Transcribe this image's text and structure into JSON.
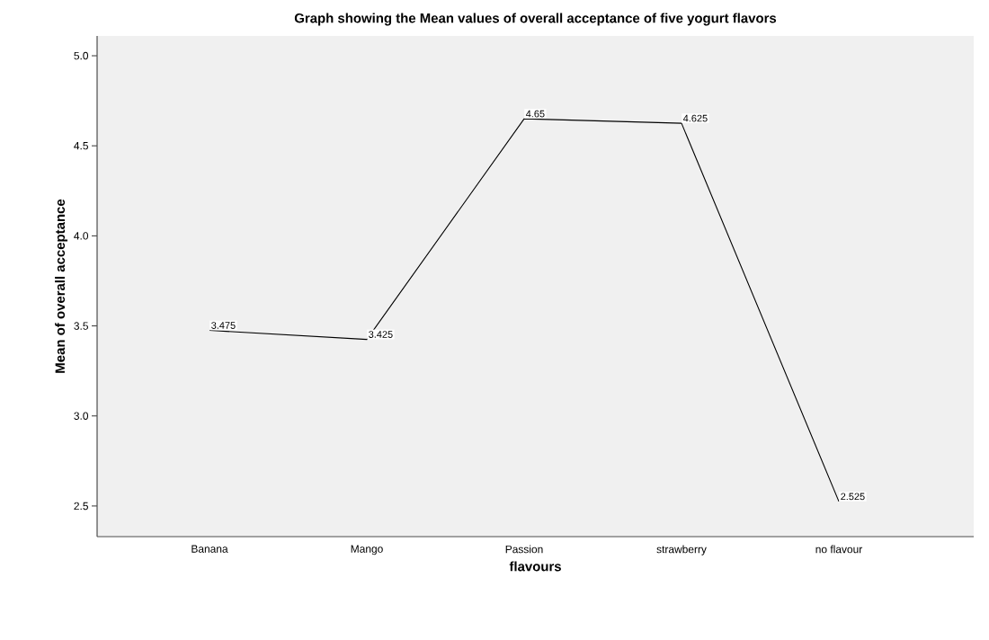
{
  "chart_data": {
    "type": "line",
    "title": "Graph showing the Mean values of overall acceptance of five yogurt flavors",
    "xlabel": "flavours",
    "ylabel": "Mean of overall acceptance",
    "categories": [
      "Banana",
      "Mango",
      "Passion",
      "strawberry",
      "no flavour"
    ],
    "values": [
      3.475,
      3.425,
      4.65,
      4.625,
      2.525
    ],
    "color": "#000000",
    "ylim": [
      2.33,
      5.11
    ],
    "yticks": [
      {
        "value": 2.5,
        "label": "2.5"
      },
      {
        "value": 3.0,
        "label": "3.0"
      },
      {
        "value": 3.5,
        "label": "3.5"
      },
      {
        "value": 4.0,
        "label": "4.0"
      },
      {
        "value": 4.5,
        "label": "4.5"
      },
      {
        "value": 5.0,
        "label": "5.0"
      }
    ],
    "grid": false,
    "marker": "none",
    "line_style": "solid",
    "data_labels": true
  }
}
